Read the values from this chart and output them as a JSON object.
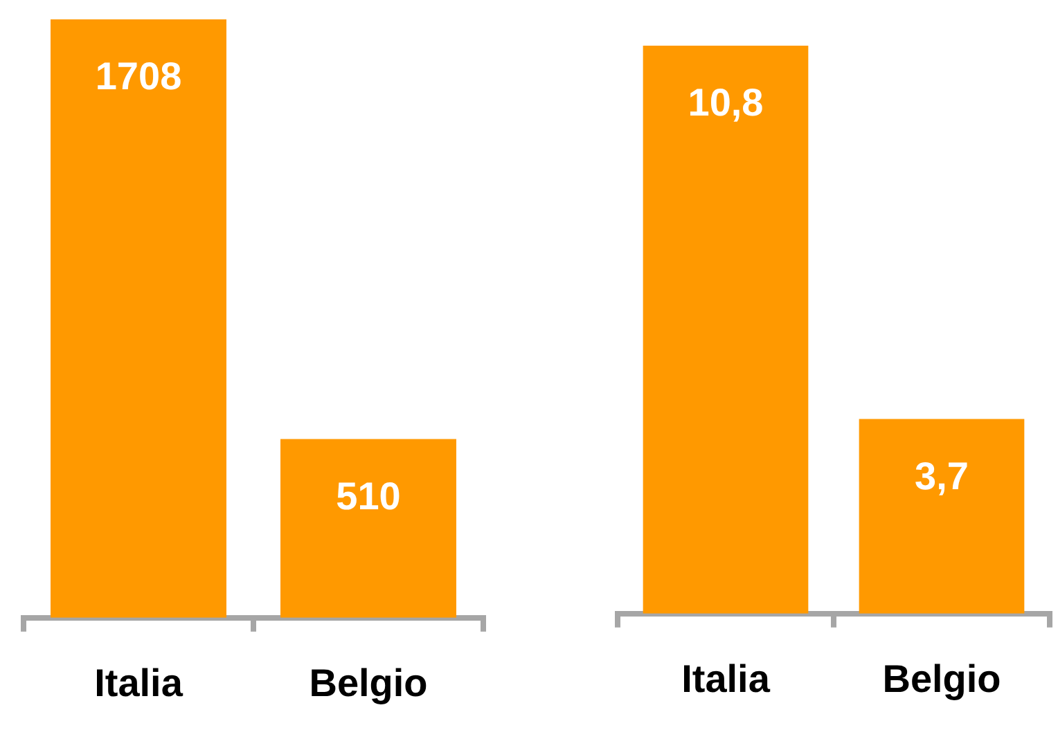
{
  "chart_data": [
    {
      "type": "bar",
      "categories": [
        "Italia",
        "Belgio"
      ],
      "values": [
        1708,
        510
      ],
      "color": "#ff9900",
      "data_labels": true
    },
    {
      "type": "bar",
      "categories": [
        "Italia",
        "Belgio"
      ],
      "values": [
        10.8,
        3.7
      ],
      "color": "#ff9900",
      "value_labels": [
        "10,8",
        "3,7"
      ]
    }
  ]
}
